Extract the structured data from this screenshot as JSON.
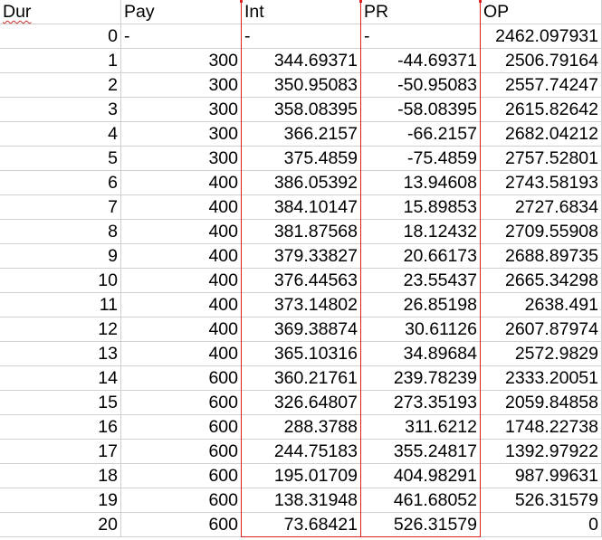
{
  "sheet": {
    "headers": [
      "Dur",
      "Pay",
      "Int",
      "PR",
      "OP"
    ],
    "rows": [
      [
        "0",
        "-",
        "-",
        "-",
        "2462.097931"
      ],
      [
        "1",
        "300",
        "344.69371",
        "-44.69371",
        "2506.79164"
      ],
      [
        "2",
        "300",
        "350.95083",
        "-50.95083",
        "2557.74247"
      ],
      [
        "3",
        "300",
        "358.08395",
        "-58.08395",
        "2615.82642"
      ],
      [
        "4",
        "300",
        "366.2157",
        "-66.2157",
        "2682.04212"
      ],
      [
        "5",
        "300",
        "375.4859",
        "-75.4859",
        "2757.52801"
      ],
      [
        "6",
        "400",
        "386.05392",
        "13.94608",
        "2743.58193"
      ],
      [
        "7",
        "400",
        "384.10147",
        "15.89853",
        "2727.6834"
      ],
      [
        "8",
        "400",
        "381.87568",
        "18.12432",
        "2709.55908"
      ],
      [
        "9",
        "400",
        "379.33827",
        "20.66173",
        "2688.89735"
      ],
      [
        "10",
        "400",
        "376.44563",
        "23.55437",
        "2665.34298"
      ],
      [
        "11",
        "400",
        "373.14802",
        "26.85198",
        "2638.491"
      ],
      [
        "12",
        "400",
        "369.38874",
        "30.61126",
        "2607.87974"
      ],
      [
        "13",
        "400",
        "365.10316",
        "34.89684",
        "2572.9829"
      ],
      [
        "14",
        "600",
        "360.21761",
        "239.78239",
        "2333.20051"
      ],
      [
        "15",
        "600",
        "326.64807",
        "273.35193",
        "2059.84858"
      ],
      [
        "16",
        "600",
        "288.3788",
        "311.6212",
        "1748.22738"
      ],
      [
        "17",
        "600",
        "244.75183",
        "355.24817",
        "1392.97922"
      ],
      [
        "18",
        "600",
        "195.01709",
        "404.98291",
        "987.99631"
      ],
      [
        "19",
        "600",
        "138.31948",
        "461.68052",
        "526.31579"
      ],
      [
        "20",
        "600",
        "73.68421",
        "526.31579",
        "0"
      ]
    ]
  },
  "colors": {
    "gridline": "#cfcfcf",
    "highlight_border": "#e02020",
    "spellcheck_underline": "#d42a2a"
  }
}
